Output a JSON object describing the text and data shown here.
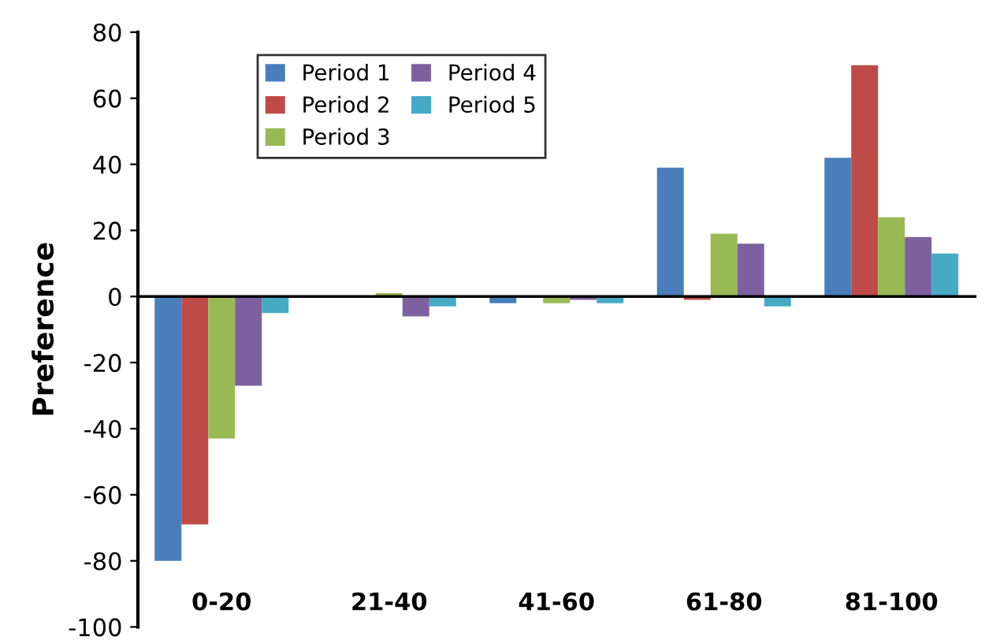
{
  "chart_data": {
    "type": "bar",
    "ylabel": "Preference",
    "categories": [
      "0-20",
      "21-40",
      "41-60",
      "61-80",
      "81-100"
    ],
    "series": [
      {
        "name": "Period 1",
        "color": "#4a7ebb",
        "values": [
          -80,
          0,
          -2,
          39,
          42
        ]
      },
      {
        "name": "Period 2",
        "color": "#be4b48",
        "values": [
          -69,
          0,
          0,
          -1,
          70
        ]
      },
      {
        "name": "Period 3",
        "color": "#98b954",
        "values": [
          -43,
          1,
          -2,
          19,
          24
        ]
      },
      {
        "name": "Period 4",
        "color": "#7d60a0",
        "values": [
          -27,
          -6,
          -1,
          16,
          18
        ]
      },
      {
        "name": "Period 5",
        "color": "#46aac5",
        "values": [
          -5,
          -3,
          -2,
          -3,
          13
        ]
      }
    ],
    "ylim": [
      -100,
      80
    ],
    "yticks": [
      -100,
      -80,
      -60,
      -40,
      -20,
      0,
      20,
      40,
      60,
      80
    ],
    "legend": "top left"
  }
}
